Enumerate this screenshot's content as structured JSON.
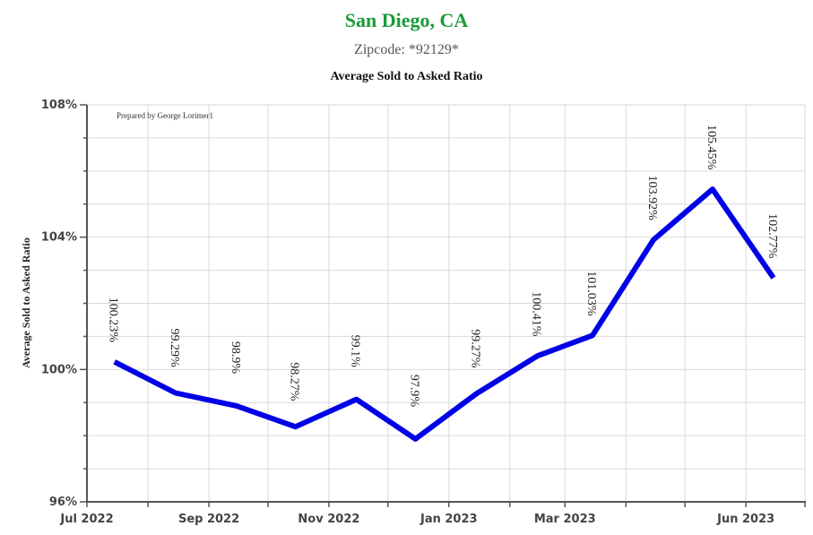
{
  "header": {
    "title": "San Diego, CA",
    "subtitle": "Zipcode: *92129*",
    "chart_title": "Average Sold to Asked Ratio"
  },
  "credit": "Prepared by George Lorimer1",
  "colors": {
    "title": "#1a9a3a",
    "line": "#0000e6",
    "grid": "#d9d9d9",
    "axis": "#555555"
  },
  "chart_data": {
    "type": "line",
    "title": "Average Sold to Asked Ratio",
    "ylabel": "Average Sold to Asked Ratio",
    "xlabel": "",
    "x": [
      "2022-07",
      "2022-08",
      "2022-09",
      "2022-10",
      "2022-11",
      "2022-12",
      "2023-01",
      "2023-02",
      "2023-03",
      "2023-04",
      "2023-05",
      "2023-06"
    ],
    "x_tick_labels": [
      "Jul 2022",
      "Sep 2022",
      "Nov 2022",
      "Jan 2023",
      "Mar 2023",
      "Jun 2023"
    ],
    "x_tick_months": [
      "2022-07",
      "2022-09",
      "2022-11",
      "2023-01",
      "2023-03",
      "2023-06"
    ],
    "series": [
      {
        "values": [
          100.23,
          99.29,
          98.9,
          98.27,
          99.1,
          97.9,
          99.27,
          100.41,
          101.03,
          103.92,
          105.45,
          102.77
        ],
        "labels": [
          "100.23%",
          "99.29%",
          "98.9%",
          "98.27%",
          "99.1%",
          "97.9%",
          "99.27%",
          "100.41%",
          "101.03%",
          "103.92%",
          "105.45%",
          "102.77%"
        ]
      }
    ],
    "ylim": [
      96,
      108
    ],
    "y_ticks": [
      96,
      100,
      104,
      108
    ],
    "y_tick_labels": [
      "96%",
      "100%",
      "104%",
      "108%"
    ],
    "grid": true
  }
}
